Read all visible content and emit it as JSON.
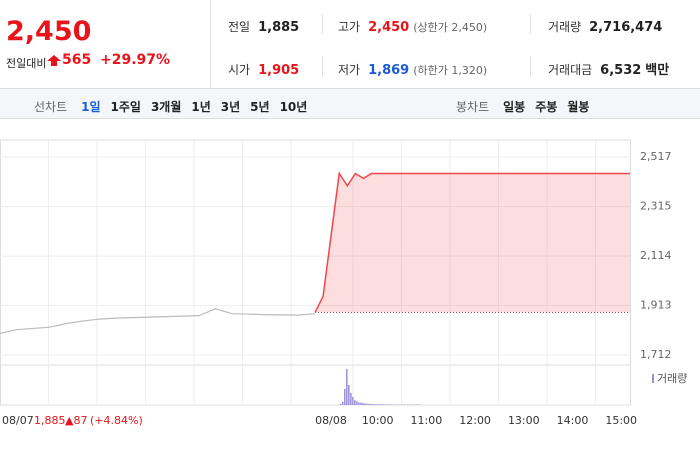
{
  "quote": {
    "price": "2,450",
    "change_label": "전일대비",
    "change": "565",
    "change_pct": "+29.97%"
  },
  "stats": [
    {
      "label": "전일",
      "value": "1,885"
    },
    {
      "label": "고가",
      "value": "2,450",
      "note": "(상한가 2,450)"
    },
    {
      "label": "거래량",
      "value": "2,716,474"
    },
    {
      "label": "시가",
      "value": "1,905"
    },
    {
      "label": "저가",
      "value": "1,869",
      "note": "(하한가 1,320)"
    },
    {
      "label": "거래대금",
      "value": "6,532",
      "unit": "백만"
    }
  ],
  "tabs": {
    "line_label": "선차트",
    "line": [
      "1일",
      "1주일",
      "3개월",
      "1년",
      "3년",
      "5년",
      "10년"
    ],
    "candle_label": "봉차트",
    "candle": [
      "일봉",
      "주봉",
      "월봉"
    ]
  },
  "chart_data": {
    "type": "line",
    "ylim": [
      1712,
      2517
    ],
    "yticks": [
      {
        "value": 1712,
        "label": "1,712"
      },
      {
        "value": 1913,
        "label": "1,913"
      },
      {
        "value": 2114,
        "label": "2,114"
      },
      {
        "value": 2315,
        "label": "2,315"
      },
      {
        "value": 2517,
        "label": "2,517"
      }
    ],
    "prev_close": 1885,
    "series": [
      {
        "name": "08/07",
        "color": "#bbbbbb",
        "values": [
          1800,
          1815,
          1820,
          1825,
          1840,
          1850,
          1858,
          1862,
          1864,
          1866,
          1868,
          1870,
          1872,
          1900,
          1880,
          1878,
          1876,
          1875,
          1874,
          1880
        ]
      },
      {
        "name": "08/08",
        "color": "#f0464b",
        "values": [
          1885,
          1950,
          2200,
          2450,
          2400,
          2450,
          2430,
          2450,
          2450,
          2450,
          2450,
          2450,
          2450,
          2450,
          2450,
          2450,
          2450,
          2450,
          2450,
          2450,
          2450,
          2450,
          2450,
          2450,
          2450,
          2450,
          2450,
          2450,
          2450,
          2450,
          2450,
          2450,
          2450,
          2450,
          2450,
          2450,
          2450,
          2450,
          2450,
          2450
        ]
      }
    ],
    "volume": {
      "name": "거래량",
      "color": "#9d8fd6",
      "values": [
        30,
        80,
        400,
        900,
        500,
        300,
        200,
        120,
        90,
        70,
        60,
        50,
        40,
        35,
        30,
        25,
        25,
        20,
        20,
        20,
        15,
        15,
        15,
        15,
        15,
        15,
        10,
        10,
        10,
        10,
        10,
        10,
        10,
        10,
        10,
        10,
        10,
        10,
        10,
        10
      ]
    },
    "time_labels": [
      "08/08",
      "10:00",
      "11:00",
      "12:00",
      "13:00",
      "14:00",
      "15:00"
    ],
    "prev_footer": {
      "date": "08/07",
      "close": "1,885",
      "change": "▲87",
      "change_pct": "(+4.84%)"
    }
  }
}
